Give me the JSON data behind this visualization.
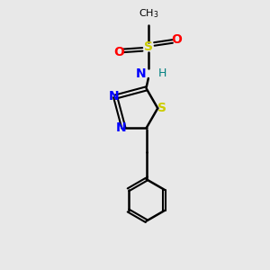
{
  "bg_color": "#e8e8e8",
  "bond_color": "#000000",
  "N_color": "#0000ff",
  "S_color": "#cccc00",
  "O_color": "#ff0000",
  "NH_color": "#008080",
  "H_color": "#008080",
  "figsize": [
    3.0,
    3.0
  ],
  "dpi": 100,
  "xlim": [
    0,
    10
  ],
  "ylim": [
    0,
    10
  ]
}
